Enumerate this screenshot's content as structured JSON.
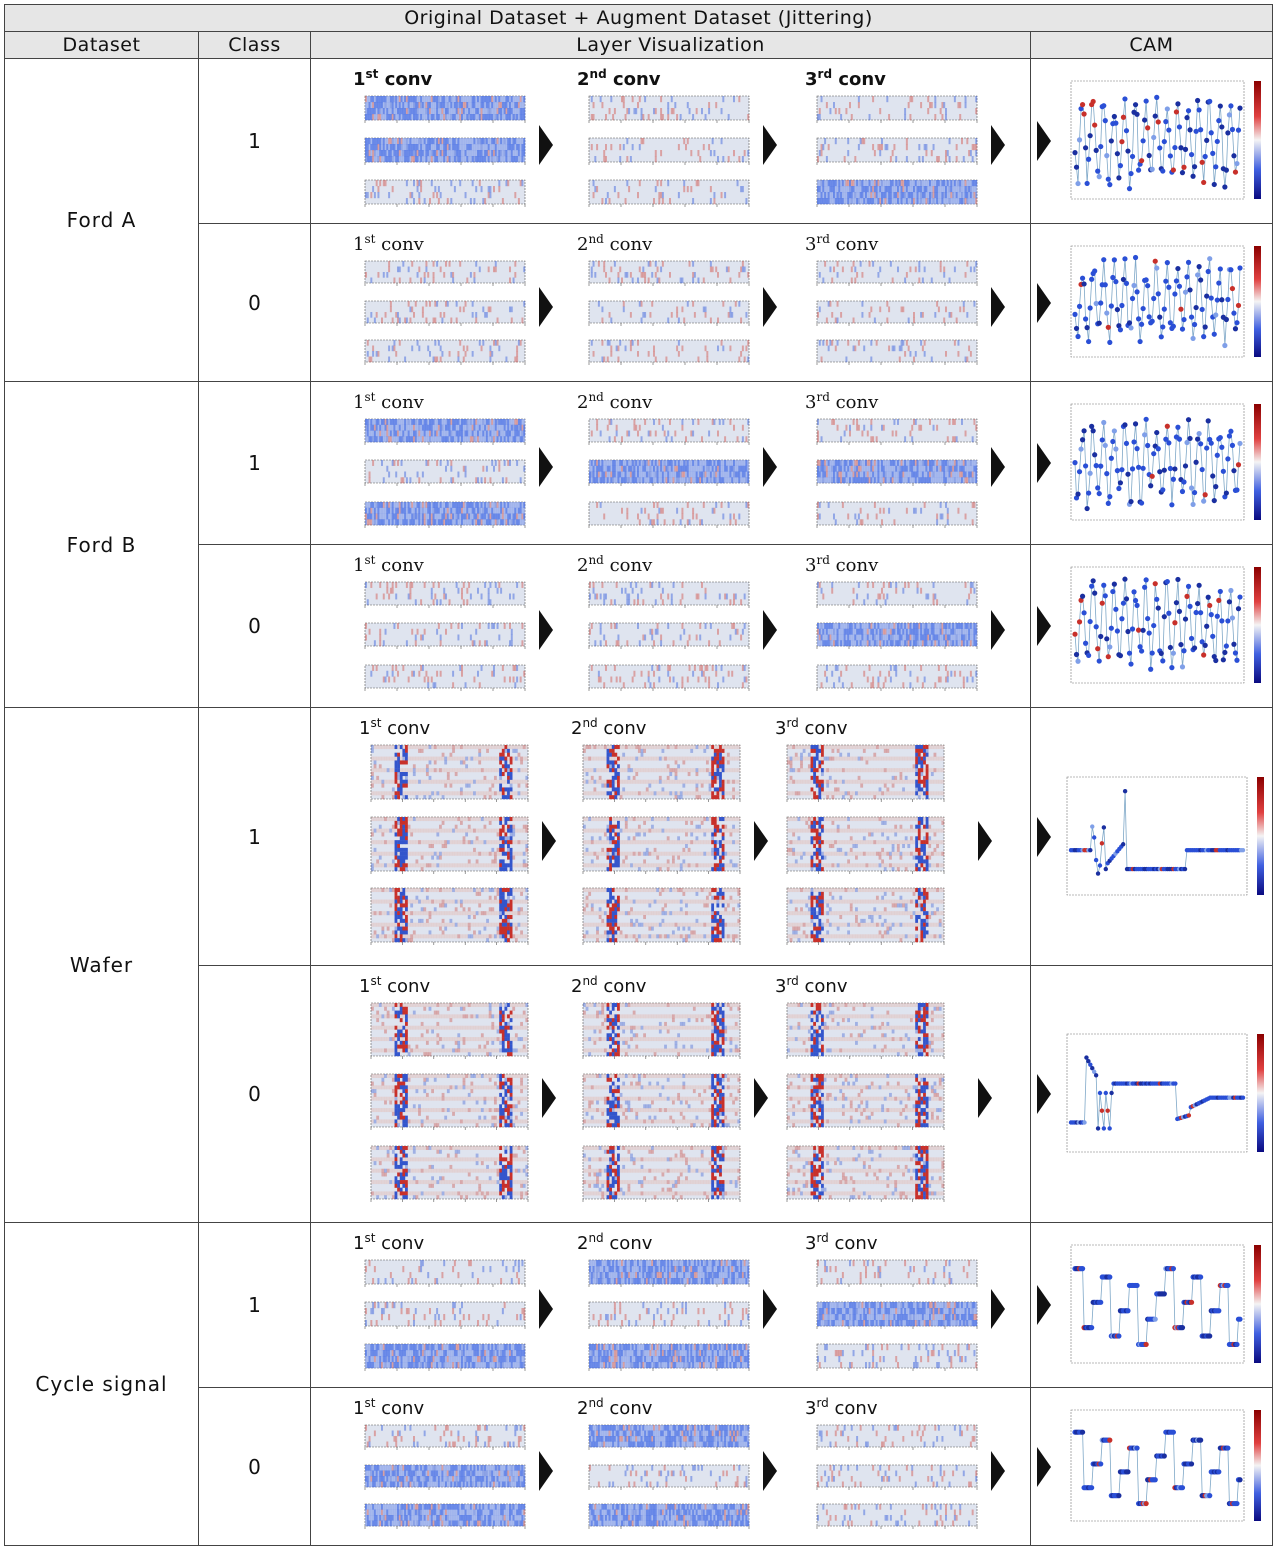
{
  "table": {
    "title": "Original Dataset + Augment Dataset (Jittering)",
    "headers": {
      "dataset": "Dataset",
      "class": "Class",
      "layer": "Layer Visualization",
      "cam": "CAM"
    }
  },
  "conv_labels": [
    {
      "num": "1",
      "sup": "st",
      "word": "conv"
    },
    {
      "num": "2",
      "sup": "nd",
      "word": "conv"
    },
    {
      "num": "3",
      "sup": "rd",
      "word": "conv"
    }
  ],
  "datasets": [
    {
      "name": "Ford A",
      "rows": [
        {
          "class": "1"
        },
        {
          "class": "0"
        }
      ]
    },
    {
      "name": "Ford B",
      "rows": [
        {
          "class": "1"
        },
        {
          "class": "0"
        }
      ]
    },
    {
      "name": "Wafer",
      "rows": [
        {
          "class": "1"
        },
        {
          "class": "0"
        }
      ]
    },
    {
      "name": "Cycle signal",
      "rows": [
        {
          "class": "1"
        },
        {
          "class": "0"
        }
      ]
    }
  ],
  "colors": {
    "header_bg": "#e6e6e6",
    "neg": "#2a4fd6",
    "pos": "#c8302a",
    "neutral": "#dde3ee"
  }
}
